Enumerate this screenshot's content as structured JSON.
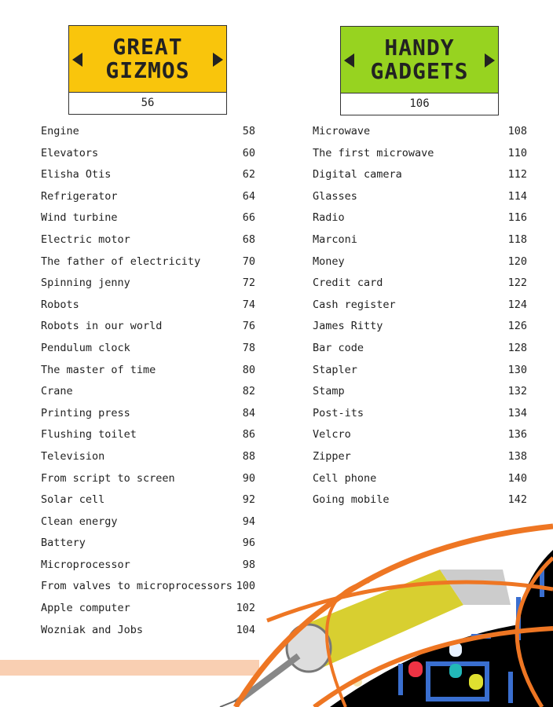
{
  "sections": [
    {
      "title_line1": "GREAT",
      "title_line2": "GIZMOS",
      "page": "56",
      "color": "#f9c50c",
      "items": [
        {
          "label": "Engine",
          "page": "58"
        },
        {
          "label": "Elevators",
          "page": "60"
        },
        {
          "label": "Elisha Otis",
          "page": "62"
        },
        {
          "label": "Refrigerator",
          "page": "64"
        },
        {
          "label": "Wind turbine",
          "page": "66"
        },
        {
          "label": "Electric motor",
          "page": "68"
        },
        {
          "label": "The father of electricity",
          "page": "70"
        },
        {
          "label": "Spinning jenny",
          "page": "72"
        },
        {
          "label": "Robots",
          "page": "74"
        },
        {
          "label": "Robots in our world",
          "page": "76"
        },
        {
          "label": "Pendulum clock",
          "page": "78"
        },
        {
          "label": "The master of time",
          "page": "80"
        },
        {
          "label": "Crane",
          "page": "82"
        },
        {
          "label": "Printing press",
          "page": "84"
        },
        {
          "label": "Flushing toilet",
          "page": "86"
        },
        {
          "label": "Television",
          "page": "88"
        },
        {
          "label": "From script to screen",
          "page": "90"
        },
        {
          "label": "Solar cell",
          "page": "92"
        },
        {
          "label": "Clean energy",
          "page": "94"
        },
        {
          "label": "Battery",
          "page": "96"
        },
        {
          "label": "Microprocessor",
          "page": "98"
        },
        {
          "label": "From valves to microprocessors",
          "page": "100"
        },
        {
          "label": "Apple computer",
          "page": "102"
        },
        {
          "label": "Wozniak and Jobs",
          "page": "104"
        }
      ]
    },
    {
      "title_line1": "HANDY",
      "title_line2": "GADGETS",
      "page": "106",
      "color": "#97d320",
      "items": [
        {
          "label": "Microwave",
          "page": "108"
        },
        {
          "label": "The first microwave",
          "page": "110"
        },
        {
          "label": "Digital camera",
          "page": "112"
        },
        {
          "label": "Glasses",
          "page": "114"
        },
        {
          "label": "Radio",
          "page": "116"
        },
        {
          "label": "Marconi",
          "page": "118"
        },
        {
          "label": "Money",
          "page": "120"
        },
        {
          "label": "Credit card",
          "page": "122"
        },
        {
          "label": "Cash register",
          "page": "124"
        },
        {
          "label": "James Ritty",
          "page": "126"
        },
        {
          "label": "Bar code",
          "page": "128"
        },
        {
          "label": "Stapler",
          "page": "130"
        },
        {
          "label": "Stamp",
          "page": "132"
        },
        {
          "label": "Post-its",
          "page": "134"
        },
        {
          "label": "Velcro",
          "page": "136"
        },
        {
          "label": "Zipper",
          "page": "138"
        },
        {
          "label": "Cell phone",
          "page": "140"
        },
        {
          "label": "Going mobile",
          "page": "142"
        }
      ]
    }
  ],
  "art": {
    "accent": "#ee7623",
    "maze_wall": "#3a6fd0",
    "illustration": "syringe-and-arcade-maze"
  }
}
